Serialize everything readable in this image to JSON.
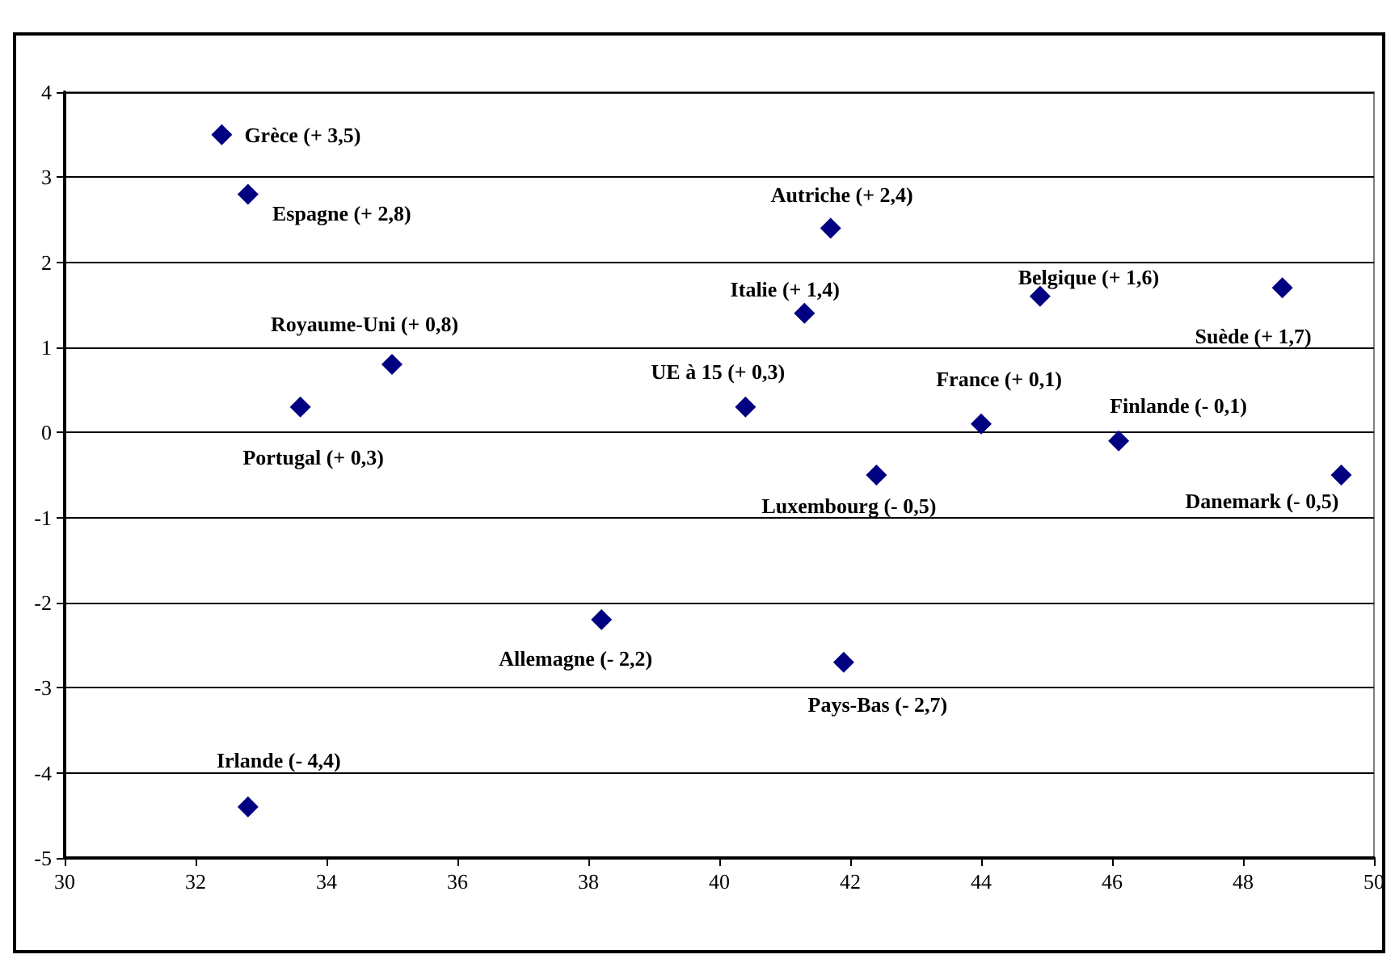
{
  "chart_data": {
    "type": "scatter",
    "x": [
      32.4,
      32.8,
      33.6,
      35.0,
      40.4,
      41.7,
      41.3,
      44.9,
      48.6,
      44.0,
      46.1,
      42.4,
      49.5,
      38.2,
      41.9,
      32.8
    ],
    "values": [
      3.5,
      2.8,
      0.3,
      0.8,
      0.3,
      2.4,
      1.4,
      1.6,
      1.7,
      0.1,
      -0.1,
      -0.5,
      -0.5,
      -2.2,
      -2.7,
      -4.4
    ],
    "value_labels": [
      "Grèce (+ 3,5)",
      "Espagne (+ 2,8)",
      "Portugal (+ 0,3)",
      "Royaume-Uni (+ 0,8)",
      "UE à 15 (+ 0,3)",
      "Autriche (+ 2,4)",
      "Italie (+ 1,4)",
      "Belgique (+ 1,6)",
      "Suède (+ 1,7)",
      "France (+ 0,1)",
      "Finlande (- 0,1)",
      "Luxembourg (- 0,5)",
      "Danemark (- 0,5)",
      "Allemagne (- 2,2)",
      "Pays-Bas (- 2,7)",
      "Irlande (- 4,4)"
    ],
    "color": "#000080",
    "marker": "diamond",
    "xlim": [
      30,
      50
    ],
    "xticks": [
      30,
      32,
      34,
      36,
      38,
      40,
      42,
      44,
      46,
      48,
      50
    ],
    "ylim": [
      -5,
      4
    ],
    "yticks": [
      -5,
      -4,
      -3,
      -2,
      -1,
      0,
      1,
      2,
      3,
      4
    ],
    "grid": "y"
  }
}
